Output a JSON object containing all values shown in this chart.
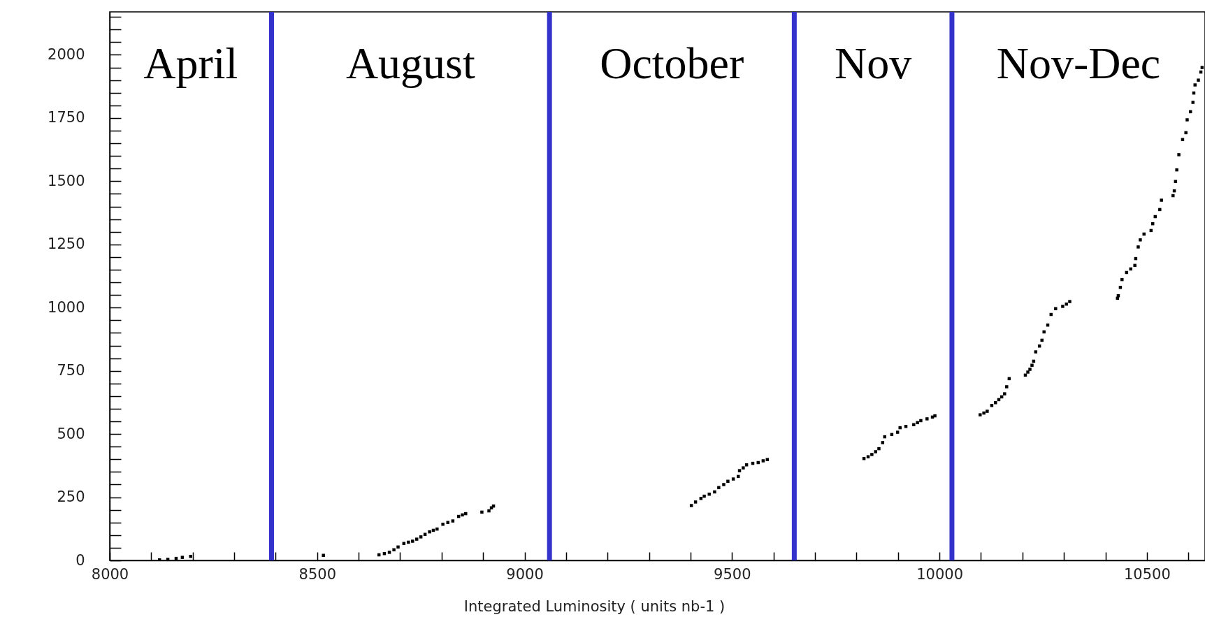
{
  "chart_data": {
    "type": "scatter",
    "xlabel": "Integrated Luminosity ( units nb-1 )",
    "marker": "square",
    "grid": false,
    "xlim": [
      8000,
      10640
    ],
    "ylim": [
      0,
      2170
    ],
    "xticks": [
      8000,
      {
        "value": 8100,
        "label": null
      },
      {
        "value": 8200,
        "label": null
      },
      {
        "value": 8300,
        "label": null
      },
      {
        "value": 8400,
        "label": null
      },
      8500,
      {
        "value": 8600,
        "label": null
      },
      {
        "value": 8700,
        "label": null
      },
      {
        "value": 8800,
        "label": null
      },
      {
        "value": 8900,
        "label": null
      },
      9000,
      {
        "value": 9100,
        "label": null
      },
      {
        "value": 9200,
        "label": null
      },
      {
        "value": 9300,
        "label": null
      },
      {
        "value": 9400,
        "label": null
      },
      9500,
      {
        "value": 9600,
        "label": null
      },
      {
        "value": 9700,
        "label": null
      },
      {
        "value": 9800,
        "label": null
      },
      {
        "value": 9900,
        "label": null
      },
      10000,
      {
        "value": 10100,
        "label": null
      },
      {
        "value": 10200,
        "label": null
      },
      {
        "value": 10300,
        "label": null
      },
      {
        "value": 10400,
        "label": null
      },
      10500,
      {
        "value": 10600,
        "label": null
      }
    ],
    "yticks": [
      0,
      {
        "value": 50,
        "label": null
      },
      {
        "value": 100,
        "label": null
      },
      {
        "value": 150,
        "label": null
      },
      {
        "value": 200,
        "label": null
      },
      250,
      {
        "value": 300,
        "label": null
      },
      {
        "value": 350,
        "label": null
      },
      {
        "value": 400,
        "label": null
      },
      {
        "value": 450,
        "label": null
      },
      500,
      {
        "value": 550,
        "label": null
      },
      {
        "value": 600,
        "label": null
      },
      {
        "value": 650,
        "label": null
      },
      {
        "value": 700,
        "label": null
      },
      750,
      {
        "value": 800,
        "label": null
      },
      {
        "value": 850,
        "label": null
      },
      {
        "value": 900,
        "label": null
      },
      {
        "value": 950,
        "label": null
      },
      1000,
      {
        "value": 1050,
        "label": null
      },
      {
        "value": 1100,
        "label": null
      },
      {
        "value": 1150,
        "label": null
      },
      {
        "value": 1200,
        "label": null
      },
      1250,
      {
        "value": 1300,
        "label": null
      },
      {
        "value": 1350,
        "label": null
      },
      {
        "value": 1400,
        "label": null
      },
      {
        "value": 1450,
        "label": null
      },
      1500,
      {
        "value": 1550,
        "label": null
      },
      {
        "value": 1600,
        "label": null
      },
      {
        "value": 1650,
        "label": null
      },
      {
        "value": 1700,
        "label": null
      },
      1750,
      {
        "value": 1800,
        "label": null
      },
      {
        "value": 1850,
        "label": null
      },
      {
        "value": 1900,
        "label": null
      },
      {
        "value": 1950,
        "label": null
      },
      2000,
      {
        "value": 2050,
        "label": null
      },
      {
        "value": 2100,
        "label": null
      },
      {
        "value": 2150,
        "label": null
      }
    ],
    "series": [
      {
        "color": "#000000",
        "x": [
          8120,
          8140,
          8160,
          8175,
          8195,
          8515,
          8649,
          8662,
          8674,
          8685,
          8695,
          8709,
          8720,
          8730,
          8740,
          8750,
          8760,
          8771,
          8780,
          8789,
          8803,
          8815,
          8827,
          8841,
          8850,
          8858,
          8897,
          8914,
          8920,
          8925,
          9402,
          9412,
          9425,
          9433,
          9445,
          9458,
          9468,
          9480,
          9490,
          9503,
          9515,
          9518,
          9527,
          9535,
          9550,
          9563,
          9575,
          9585,
          9818,
          9828,
          9837,
          9846,
          9854,
          9863,
          9868,
          9885,
          9899,
          9905,
          9919,
          9938,
          9947,
          9955,
          9970,
          9983,
          9989,
          10098,
          10107,
          10115,
          10126,
          10135,
          10143,
          10150,
          10157,
          10162,
          10168,
          10207,
          10213,
          10218,
          10223,
          10227,
          10232,
          10241,
          10247,
          10252,
          10261,
          10269,
          10280,
          10297,
          10306,
          10314,
          10429,
          10431,
          10436,
          10440,
          10451,
          10461,
          10471,
          10473,
          10479,
          10484,
          10493,
          10510,
          10514,
          10520,
          10531,
          10535,
          10563,
          10566,
          10569,
          10572,
          10577,
          10586,
          10594,
          10597,
          10605,
          10611,
          10613,
          10616,
          10624,
          10630,
          10633
        ],
        "values": [
          2,
          4,
          8,
          12,
          16,
          20,
          22,
          27,
          32,
          42,
          53,
          67,
          72,
          76,
          84,
          93,
          103,
          113,
          119,
          124,
          143,
          150,
          156,
          174,
          180,
          185,
          191,
          196,
          208,
          215,
          217,
          231,
          245,
          254,
          262,
          271,
          288,
          300,
          313,
          322,
          332,
          355,
          366,
          378,
          384,
          387,
          394,
          399,
          403,
          410,
          419,
          430,
          442,
          466,
          489,
          498,
          507,
          525,
          530,
          537,
          545,
          553,
          560,
          567,
          572,
          576,
          583,
          590,
          613,
          624,
          636,
          647,
          659,
          687,
          719,
          733,
          745,
          756,
          772,
          788,
          825,
          848,
          871,
          904,
          931,
          973,
          996,
          1005,
          1014,
          1024,
          1037,
          1047,
          1080,
          1111,
          1139,
          1153,
          1167,
          1194,
          1240,
          1268,
          1291,
          1305,
          1332,
          1360,
          1388,
          1425,
          1443,
          1462,
          1499,
          1545,
          1605,
          1665,
          1692,
          1743,
          1775,
          1812,
          1849,
          1881,
          1900,
          1932,
          1950
        ]
      }
    ],
    "ref_lines": [
      {
        "axis": "x",
        "value": 8390,
        "color": "#3333cc"
      },
      {
        "axis": "x",
        "value": 9060,
        "color": "#3333cc"
      },
      {
        "axis": "x",
        "value": 9650,
        "color": "#3333cc"
      },
      {
        "axis": "x",
        "value": 10030,
        "color": "#3333cc"
      }
    ],
    "annotations": [
      "April",
      "August",
      "October",
      "Nov",
      "Nov-Dec"
    ]
  }
}
